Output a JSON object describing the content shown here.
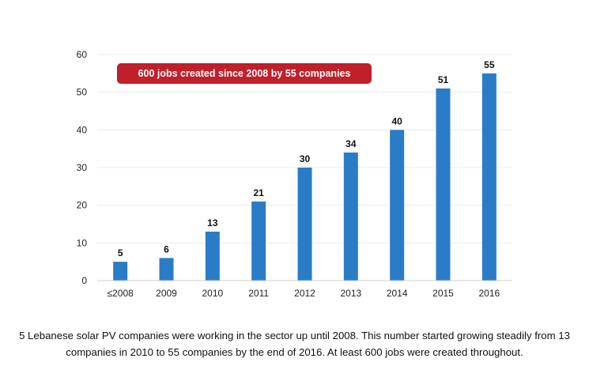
{
  "chart_data": {
    "type": "bar",
    "categories": [
      "≤2008",
      "2009",
      "2010",
      "2011",
      "2012",
      "2013",
      "2014",
      "2015",
      "2016"
    ],
    "values": [
      5,
      6,
      13,
      21,
      30,
      34,
      40,
      51,
      55
    ],
    "ylim": [
      0,
      60
    ],
    "yticks": [
      0,
      10,
      20,
      30,
      40,
      50,
      60
    ],
    "grid": true,
    "bar_color": "#2a7cc7",
    "annotation": "600 jobs created since 2008 by 55 companies",
    "annotation_color": "#c0202a"
  },
  "caption": {
    "line1": "5 Lebanese solar PV companies were working in the sector up until 2008. This number started growing steadily from 13",
    "line2": "companies in 2010 to 55 companies by the end of 2016. At least 600 jobs were created throughout."
  }
}
